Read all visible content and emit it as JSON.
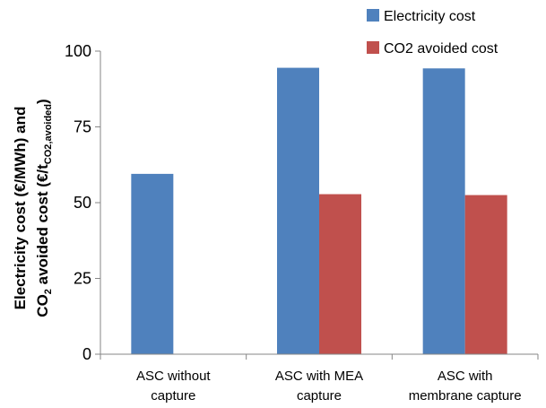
{
  "chart_data": {
    "type": "bar",
    "categories": [
      [
        "ASC without",
        "capture"
      ],
      [
        "ASC with MEA",
        "capture"
      ],
      [
        "ASC with",
        "membrane capture"
      ]
    ],
    "series": [
      {
        "name": "Electricity cost",
        "color": "#4F81BD",
        "values": [
          59.5,
          94.5,
          94.3
        ]
      },
      {
        "name": "CO2 avoided cost",
        "color": "#C0504D",
        "values": [
          null,
          52.8,
          52.5
        ]
      }
    ],
    "ylim": [
      0,
      100
    ],
    "yticks": [
      0,
      25,
      50,
      75,
      100
    ],
    "ylabel": {
      "line1": "Electricity cost (€/MWh) and",
      "line2_a": "CO",
      "line2_sub1": "2",
      "line2_b": " avoided cost (€/t",
      "line2_sub2": "CO2,avoided",
      "line2_c": ")"
    },
    "legend_position": "top-right",
    "grid": false
  }
}
